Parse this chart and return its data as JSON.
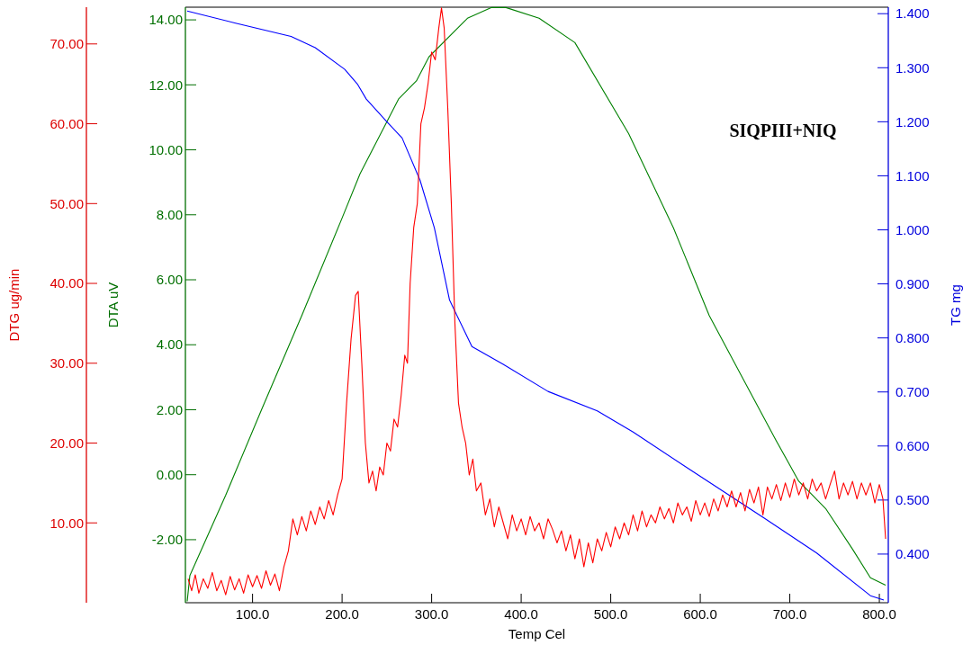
{
  "chart_data": {
    "type": "line",
    "xlabel": "Temp Cel",
    "ylabel": "DTA uV",
    "y2label": "TG mg",
    "y3label": "DTG ug/min",
    "annotations": [
      "SIQPIII+NIQ"
    ],
    "xlim": [
      25,
      810
    ],
    "xticks": [
      {
        "value": 100,
        "label": "100.0"
      },
      {
        "value": 200,
        "label": "200.0"
      },
      {
        "value": 300,
        "label": "300.0"
      },
      {
        "value": 400,
        "label": "400.0"
      },
      {
        "value": 500,
        "label": "500.0"
      },
      {
        "value": 600,
        "label": "600.0"
      },
      {
        "value": 700,
        "label": "700.0"
      },
      {
        "value": 800,
        "label": "800.0"
      }
    ],
    "ylim": [
      -3.94,
      14.39
    ],
    "yticks": [
      {
        "value": -2,
        "label": "-2.00"
      },
      {
        "value": 0,
        "label": "0.00"
      },
      {
        "value": 2,
        "label": "2.00"
      },
      {
        "value": 4,
        "label": "4.00"
      },
      {
        "value": 6,
        "label": "6.00"
      },
      {
        "value": 8,
        "label": "8.00"
      },
      {
        "value": 10,
        "label": "10.00"
      },
      {
        "value": 12,
        "label": "12.00"
      },
      {
        "value": 14,
        "label": "14.00"
      }
    ],
    "y2lim": [
      0.31,
      1.412
    ],
    "y2ticks": [
      {
        "value": 0.4,
        "label": "0.400"
      },
      {
        "value": 0.5,
        "label": "0.500"
      },
      {
        "value": 0.6,
        "label": "0.600"
      },
      {
        "value": 0.7,
        "label": "0.700"
      },
      {
        "value": 0.8,
        "label": "0.800"
      },
      {
        "value": 0.9,
        "label": "0.900"
      },
      {
        "value": 1.0,
        "label": "1.000"
      },
      {
        "value": 1.1,
        "label": "1.100"
      },
      {
        "value": 1.2,
        "label": "1.200"
      },
      {
        "value": 1.3,
        "label": "1.300"
      },
      {
        "value": 1.4,
        "label": "1.400"
      }
    ],
    "y3lim": [
      0,
      74.6
    ],
    "y3ticks": [
      {
        "value": 10,
        "label": "10.00"
      },
      {
        "value": 20,
        "label": "20.00"
      },
      {
        "value": 30,
        "label": "30.00"
      },
      {
        "value": 40,
        "label": "40.00"
      },
      {
        "value": 50,
        "label": "50.00"
      },
      {
        "value": 60,
        "label": "60.00"
      },
      {
        "value": 70,
        "label": "70.00"
      }
    ],
    "grid": false,
    "series": [
      {
        "color": "#008000",
        "axis": "y",
        "x": [
          27,
          30,
          70,
          110,
          155,
          200,
          220,
          263,
          283,
          297,
          340,
          367,
          383,
          420,
          460,
          520,
          570,
          610,
          650,
          685,
          710,
          740,
          770,
          790,
          807
        ],
        "values": [
          -3.9,
          -3.1,
          -0.63,
          2.0,
          4.9,
          7.9,
          9.26,
          11.56,
          12.12,
          12.86,
          14.05,
          14.38,
          14.38,
          14.05,
          13.3,
          10.5,
          7.6,
          4.9,
          2.84,
          1.04,
          -0.2,
          -1.04,
          -2.29,
          -3.17,
          -3.4
        ]
      },
      {
        "color": "#0000ff",
        "axis": "y2",
        "x": [
          27,
          80,
          143,
          170,
          203,
          217,
          227,
          250,
          267,
          287,
          303,
          320,
          345,
          380,
          430,
          485,
          525,
          585,
          670,
          730,
          790,
          805
        ],
        "values": [
          1.405,
          1.383,
          1.358,
          1.337,
          1.297,
          1.27,
          1.242,
          1.2,
          1.17,
          1.092,
          1.004,
          0.87,
          0.784,
          0.751,
          0.701,
          0.665,
          0.626,
          0.56,
          0.468,
          0.402,
          0.323,
          0.315
        ]
      },
      {
        "color": "#ff0000",
        "axis": "y3",
        "x": [
          28,
          32,
          36,
          40,
          45,
          50,
          55,
          60,
          65,
          70,
          75,
          80,
          85,
          90,
          95,
          100,
          105,
          110,
          115,
          120,
          125,
          130,
          135,
          140,
          145,
          150,
          155,
          160,
          165,
          170,
          175,
          180,
          185,
          190,
          195,
          200,
          205,
          210,
          215,
          218,
          222,
          226,
          230,
          234,
          238,
          242,
          246,
          250,
          254,
          258,
          262,
          266,
          270,
          273,
          276,
          280,
          284,
          288,
          292,
          296,
          300,
          304,
          308,
          311,
          314,
          318,
          322,
          326,
          330,
          334,
          338,
          342,
          346,
          350,
          355,
          360,
          365,
          370,
          375,
          380,
          385,
          390,
          395,
          400,
          405,
          410,
          415,
          420,
          425,
          430,
          435,
          440,
          445,
          450,
          455,
          460,
          465,
          470,
          475,
          480,
          485,
          490,
          495,
          500,
          505,
          510,
          515,
          520,
          525,
          530,
          535,
          540,
          545,
          550,
          555,
          560,
          565,
          570,
          575,
          580,
          585,
          590,
          595,
          600,
          605,
          610,
          615,
          620,
          625,
          630,
          635,
          640,
          645,
          650,
          655,
          660,
          665,
          670,
          675,
          680,
          685,
          690,
          695,
          700,
          705,
          710,
          715,
          720,
          725,
          730,
          735,
          740,
          745,
          750,
          755,
          760,
          765,
          770,
          775,
          780,
          785,
          790,
          795,
          800,
          804,
          807
        ],
        "values": [
          3,
          1.5,
          3.5,
          1.2,
          3,
          1.8,
          3.8,
          1.5,
          2.8,
          1.0,
          3.3,
          1.6,
          3.0,
          1.2,
          3.5,
          2.0,
          3.4,
          1.8,
          4.0,
          2.2,
          3.6,
          1.5,
          4.5,
          6.5,
          10.5,
          8.5,
          10.8,
          9.0,
          11.5,
          9.8,
          12.0,
          10.5,
          12.8,
          11.0,
          13.5,
          15.5,
          25,
          33,
          38.5,
          39,
          30,
          20,
          15,
          16.5,
          14,
          17,
          16,
          20,
          19,
          23,
          22,
          26,
          31,
          30,
          40,
          47,
          50,
          60,
          62,
          65,
          69,
          68,
          72,
          74.5,
          72,
          62,
          50,
          35,
          25,
          22,
          20,
          16,
          18,
          14,
          15,
          11,
          13,
          9.5,
          12,
          10,
          8,
          11,
          9,
          10.5,
          8.5,
          10.8,
          9,
          10,
          8,
          10.5,
          9.2,
          7.5,
          9,
          6.5,
          8.5,
          5.5,
          8,
          4.5,
          7.5,
          5,
          8,
          6.5,
          8.8,
          7,
          9.5,
          8,
          10,
          8.5,
          11,
          9,
          11.5,
          9.5,
          11,
          10,
          12,
          10.5,
          11.8,
          10,
          12.5,
          11,
          12,
          10.2,
          12.8,
          11,
          12.5,
          10.8,
          13,
          11.5,
          13.5,
          12,
          14,
          12,
          13.8,
          11.5,
          14.2,
          12.5,
          14.5,
          11,
          14.5,
          13,
          14.8,
          12.8,
          15,
          13.2,
          15.5,
          13.5,
          15,
          13,
          15.5,
          14,
          15,
          13,
          14.8,
          16.5,
          13,
          15,
          13.5,
          15.2,
          13,
          15,
          13.5,
          15,
          12.5,
          14.8,
          13,
          8
        ]
      }
    ]
  }
}
